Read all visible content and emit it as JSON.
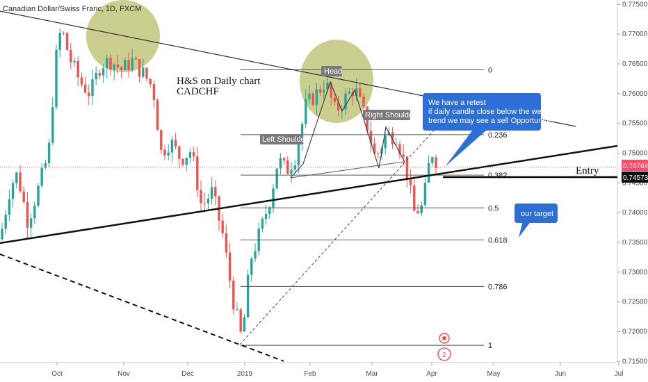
{
  "chart_data": {
    "type": "candlestick",
    "title": "Canadian Dollar/Swiss Franc, 1D, FXCM",
    "annotation_title": [
      "H&S on Daily chart",
      "CADCHF"
    ],
    "x_ticks": [
      "Oct",
      "Nov",
      "Dec",
      "2019",
      "Feb",
      "Mar",
      "Apr",
      "May",
      "Jun",
      "Jul"
    ],
    "y_ticks": [
      "0.77500",
      "0.77000",
      "0.76500",
      "0.76000",
      "0.75500",
      "0.75000",
      "0.74500",
      "0.74000",
      "0.73500",
      "0.73000",
      "0.72500",
      "0.72000",
      "0.71500"
    ],
    "ylim": [
      0.7148,
      0.7755
    ],
    "current_price": {
      "label": "0.74764",
      "value": 0.74764,
      "color": "#ff4a68"
    },
    "entry_price": {
      "label": "0.74573",
      "value": 0.74573,
      "text": "Entry"
    },
    "fibonacci": [
      {
        "level": "0",
        "price": 0.764
      },
      {
        "level": "0.236",
        "price": 0.7531
      },
      {
        "level": "0.382",
        "price": 0.7463
      },
      {
        "level": "0.5",
        "price": 0.7408
      },
      {
        "level": "0.618",
        "price": 0.7354
      },
      {
        "level": "0.786",
        "price": 0.7276
      },
      {
        "level": "1",
        "price": 0.7177
      }
    ],
    "patterns": {
      "left_shoulder": "Left Shoulder",
      "head": "Head",
      "right_shoulder": "Right Shoulder"
    },
    "notes": {
      "retest": [
        "We have a retest",
        "if daily candle close below the weekly",
        "trend we may see a sell Opportunity"
      ],
      "target": "our target"
    },
    "event_badge": "2",
    "colors": {
      "up": "#26a69a",
      "down": "#ef5350",
      "highlight": "#b8bd6a",
      "note": "#2d6fd6",
      "fib": "#555555"
    }
  }
}
